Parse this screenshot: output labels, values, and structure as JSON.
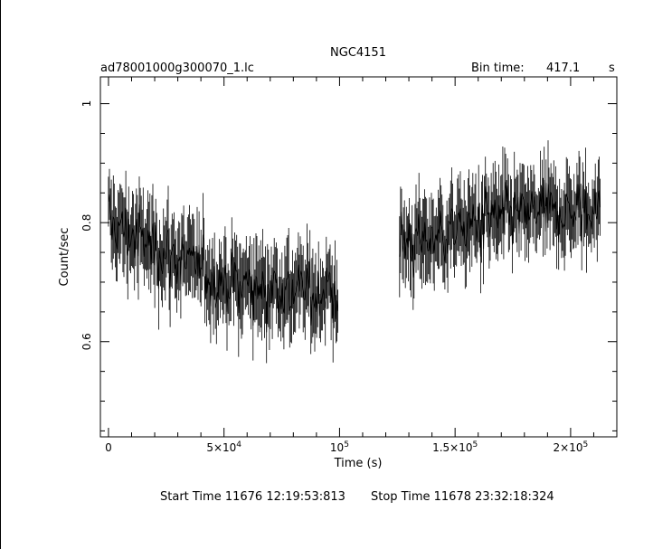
{
  "chart_data": {
    "type": "line",
    "title": "NGC4151",
    "subtitle_left": "ad78001000g300070_1.lc",
    "bin_time_label": "Bin time:",
    "bin_time_value": "417.1",
    "bin_time_unit": "s",
    "xlabel": "Time (s)",
    "ylabel": "Count/sec",
    "xlim": [
      -3500,
      220000
    ],
    "ylim": [
      0.44,
      1.045
    ],
    "x_ticks": [
      {
        "value": 0,
        "label": "0",
        "base": "0",
        "exp": ""
      },
      {
        "value": 50000,
        "label": "5×10⁴",
        "base": "5×10",
        "exp": "4"
      },
      {
        "value": 100000,
        "label": "10⁵",
        "base": "10",
        "exp": "5"
      },
      {
        "value": 150000,
        "label": "1.5×10⁵",
        "base": "1.5×10",
        "exp": "5"
      },
      {
        "value": 200000,
        "label": "2×10⁵",
        "base": "2×10",
        "exp": "5"
      }
    ],
    "y_ticks": [
      {
        "value": 0.6,
        "label": "0.6"
      },
      {
        "value": 0.8,
        "label": "0.8"
      },
      {
        "value": 1.0,
        "label": "1"
      }
    ],
    "grid": false,
    "segments": [
      {
        "x_start": 0,
        "x_end": 99500,
        "level_start": 0.8,
        "level_mid": 0.7,
        "level_end": 0.68
      },
      {
        "x_start": 126000,
        "x_end": 213000,
        "level_start": 0.76,
        "level_mid": 0.81,
        "level_end": 0.82
      }
    ],
    "footer_start": "Start Time 11676 12:19:53:813",
    "footer_stop": "Stop Time 11678 23:32:18:324"
  }
}
